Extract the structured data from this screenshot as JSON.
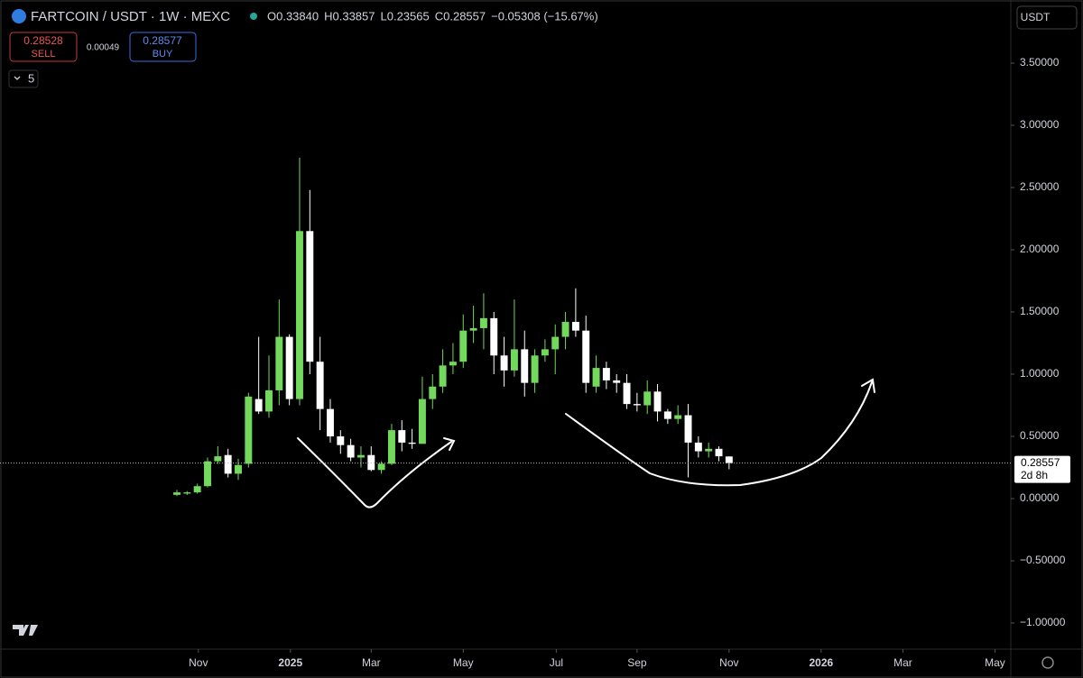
{
  "chart_data": {
    "type": "candlestick",
    "title": "FARTCOIN / USDT · 1W · MEXC",
    "ohlc_header": [
      "O0.33840",
      "H0.33857",
      "L0.23565",
      "C0.28557",
      "−0.05308 (−15.67%)"
    ],
    "sell_price": "0.28528",
    "sell_label": "SELL",
    "spread": "0.00049",
    "buy_price": "0.28577",
    "buy_label": "BUY",
    "indicator_count": "5",
    "currency": "USDT",
    "countdown": "2d 8h",
    "last_price_label": "0.28557",
    "up_color": "#72d95c",
    "down_color": "#ffffff",
    "x": [
      0,
      1,
      2,
      3,
      4,
      5,
      6,
      7,
      8,
      9,
      10,
      11,
      12,
      13,
      14,
      15,
      16,
      17,
      18,
      19,
      20,
      21,
      22,
      23,
      24,
      25,
      26,
      27,
      28,
      29,
      30,
      31,
      32,
      33,
      34,
      35,
      36,
      37,
      38,
      39,
      40,
      41,
      42,
      43,
      44,
      45,
      46,
      47,
      48,
      49,
      50,
      51,
      52,
      53,
      54
    ],
    "open": [
      0.03,
      0.04,
      0.05,
      0.1,
      0.3,
      0.35,
      0.2,
      0.28,
      0.8,
      0.7,
      0.87,
      1.3,
      0.8,
      2.15,
      1.1,
      0.72,
      0.5,
      0.43,
      0.33,
      0.35,
      0.23,
      0.28,
      0.55,
      0.45,
      0.44,
      0.8,
      0.9,
      1.07,
      1.1,
      1.35,
      1.37,
      1.45,
      1.15,
      1.03,
      1.2,
      0.93,
      1.15,
      1.2,
      1.3,
      1.42,
      1.35,
      0.9,
      1.05,
      0.95,
      0.93,
      0.76,
      0.75,
      0.86,
      0.7,
      0.64,
      0.67,
      0.45,
      0.38,
      0.4,
      0.3384
    ],
    "high": [
      0.07,
      0.06,
      0.12,
      0.33,
      0.42,
      0.4,
      0.32,
      0.85,
      1.3,
      1.15,
      1.6,
      1.32,
      2.74,
      2.48,
      1.3,
      0.8,
      0.55,
      0.48,
      0.42,
      0.42,
      0.3,
      0.6,
      0.63,
      0.56,
      0.98,
      1.0,
      1.2,
      1.25,
      1.48,
      1.55,
      1.65,
      1.5,
      1.3,
      1.6,
      1.35,
      1.2,
      1.28,
      1.4,
      1.5,
      1.69,
      1.47,
      1.15,
      1.1,
      1.0,
      1.0,
      0.85,
      0.95,
      0.92,
      0.72,
      0.75,
      0.76,
      0.5,
      0.45,
      0.42,
      0.33857
    ],
    "low": [
      0.02,
      0.03,
      0.04,
      0.09,
      0.28,
      0.17,
      0.15,
      0.25,
      0.68,
      0.65,
      0.75,
      0.75,
      0.75,
      1.0,
      0.55,
      0.45,
      0.36,
      0.3,
      0.25,
      0.22,
      0.2,
      0.27,
      0.38,
      0.4,
      0.44,
      0.72,
      0.85,
      1.0,
      1.05,
      1.25,
      1.2,
      1.0,
      0.9,
      0.98,
      0.82,
      0.85,
      1.1,
      1.0,
      1.2,
      1.3,
      0.85,
      0.85,
      0.88,
      0.85,
      0.72,
      0.7,
      0.68,
      0.62,
      0.6,
      0.6,
      0.17,
      0.33,
      0.33,
      0.3,
      0.23565
    ],
    "close": [
      0.05,
      0.05,
      0.1,
      0.3,
      0.34,
      0.2,
      0.27,
      0.82,
      0.7,
      0.87,
      1.3,
      0.8,
      2.15,
      1.1,
      0.72,
      0.5,
      0.43,
      0.33,
      0.35,
      0.23,
      0.28,
      0.55,
      0.45,
      0.44,
      0.8,
      0.9,
      1.07,
      1.1,
      1.35,
      1.37,
      1.45,
      1.15,
      1.03,
      1.2,
      0.93,
      1.15,
      1.2,
      1.3,
      1.42,
      1.35,
      0.93,
      1.05,
      0.95,
      0.93,
      0.76,
      0.75,
      0.86,
      0.7,
      0.64,
      0.67,
      0.45,
      0.38,
      0.4,
      0.34,
      0.28557
    ],
    "xlim": [
      -17.3,
      81.55
    ],
    "xticks": [
      {
        "value": 2.1,
        "label": "Nov"
      },
      {
        "value": 11.1,
        "label": "2025"
      },
      {
        "value": 19,
        "label": "Mar"
      },
      {
        "value": 28,
        "label": "May"
      },
      {
        "value": 37.1,
        "label": "Jul"
      },
      {
        "value": 45,
        "label": "Sep"
      },
      {
        "value": 54,
        "label": "Nov"
      },
      {
        "value": 63,
        "label": "2026"
      },
      {
        "value": 71,
        "label": "Mar"
      },
      {
        "value": 80,
        "label": "May"
      }
    ],
    "ylim": [
      -1.21,
      4.007
    ],
    "yticks": [
      {
        "value": -1,
        "label": "−1.00000"
      },
      {
        "value": -0.5,
        "label": "−0.50000"
      },
      {
        "value": 0,
        "label": "0.00000"
      },
      {
        "value": 0.5,
        "label": "0.50000"
      },
      {
        "value": 1,
        "label": "1.00000"
      },
      {
        "value": 1.5,
        "label": "1.50000"
      },
      {
        "value": 2,
        "label": "2.00000"
      },
      {
        "value": 2.5,
        "label": "2.50000"
      },
      {
        "value": 3,
        "label": "3.00000"
      },
      {
        "value": 3.5,
        "label": "3.50000"
      }
    ]
  }
}
